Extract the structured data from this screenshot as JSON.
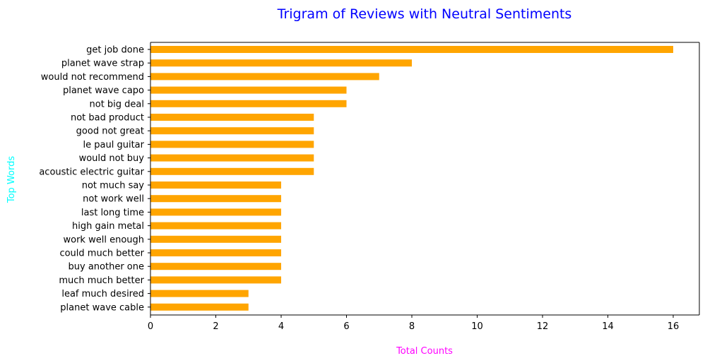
{
  "chart_data": {
    "type": "bar",
    "orientation": "horizontal",
    "title": "Trigram of Reviews with Neutral Sentiments",
    "xlabel": "Total Counts",
    "ylabel": "Top Words",
    "categories": [
      "get job done",
      "planet wave strap",
      "would not recommend",
      "planet wave capo",
      "not big deal",
      "not bad product",
      "good not great",
      "le paul guitar",
      "would not buy",
      "acoustic electric guitar",
      "not much say",
      "not work well",
      "last long time",
      "high gain metal",
      "work well enough",
      "could much better",
      "buy another one",
      "much much better",
      "leaf much desired",
      "planet wave cable"
    ],
    "values": [
      16,
      8,
      7,
      6,
      6,
      5,
      5,
      5,
      5,
      5,
      4,
      4,
      4,
      4,
      4,
      4,
      4,
      4,
      3,
      3
    ],
    "xlim": [
      0,
      16.8
    ],
    "xticks": [
      0,
      2,
      4,
      6,
      8,
      10,
      12,
      14,
      16
    ],
    "grid": false,
    "legend": "none",
    "colors": {
      "bar": "#ffa500",
      "title": "#0000ff",
      "xlabel": "#ff00ff",
      "ylabel": "#00ffff"
    }
  }
}
